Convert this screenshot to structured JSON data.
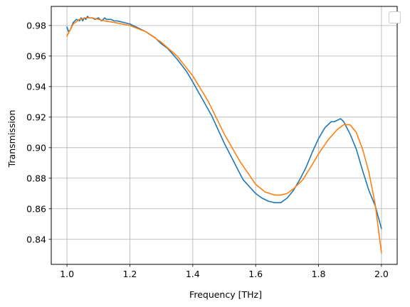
{
  "chart_data": {
    "type": "line",
    "xlabel": "Frequency [THz]",
    "ylabel": "Transmission",
    "xlim": [
      0.95,
      2.05
    ],
    "ylim": [
      0.8236,
      0.9925
    ],
    "grid": true,
    "legend": {
      "placement": "top-right",
      "entries": []
    },
    "x_ticks": [
      1.0,
      1.2,
      1.4,
      1.6,
      1.8,
      2.0
    ],
    "x_tick_labels": [
      "1.0",
      "1.2",
      "1.4",
      "1.6",
      "1.8",
      "2.0"
    ],
    "y_ticks": [
      0.84,
      0.86,
      0.88,
      0.9,
      0.92,
      0.94,
      0.96,
      0.98
    ],
    "y_tick_labels": [
      "0.84",
      "0.86",
      "0.88",
      "0.90",
      "0.92",
      "0.94",
      "0.96",
      "0.98"
    ],
    "series": [
      {
        "color": "#1f77b4",
        "x": [
          1.0,
          1.005,
          1.01,
          1.02,
          1.03,
          1.04,
          1.045,
          1.05,
          1.055,
          1.06,
          1.065,
          1.07,
          1.08,
          1.09,
          1.1,
          1.11,
          1.12,
          1.125,
          1.13,
          1.14,
          1.15,
          1.16,
          1.18,
          1.2,
          1.22,
          1.25,
          1.28,
          1.3,
          1.32,
          1.35,
          1.38,
          1.4,
          1.43,
          1.46,
          1.5,
          1.53,
          1.56,
          1.6,
          1.62,
          1.64,
          1.66,
          1.68,
          1.7,
          1.72,
          1.74,
          1.76,
          1.78,
          1.8,
          1.82,
          1.84,
          1.85,
          1.86,
          1.87,
          1.88,
          1.89,
          1.9,
          1.92,
          1.94,
          1.96,
          1.98,
          2.0
        ],
        "y": [
          0.979,
          0.976,
          0.977,
          0.982,
          0.984,
          0.983,
          0.985,
          0.983,
          0.985,
          0.984,
          0.986,
          0.985,
          0.985,
          0.984,
          0.985,
          0.983,
          0.985,
          0.984,
          0.984,
          0.984,
          0.983,
          0.983,
          0.982,
          0.981,
          0.979,
          0.976,
          0.972,
          0.968,
          0.965,
          0.958,
          0.95,
          0.943,
          0.932,
          0.921,
          0.903,
          0.891,
          0.879,
          0.87,
          0.867,
          0.865,
          0.864,
          0.864,
          0.867,
          0.872,
          0.879,
          0.887,
          0.897,
          0.906,
          0.913,
          0.917,
          0.917,
          0.918,
          0.919,
          0.917,
          0.913,
          0.909,
          0.899,
          0.885,
          0.872,
          0.862,
          0.847
        ]
      },
      {
        "color": "#ff7f0e",
        "x": [
          1.0,
          1.02,
          1.04,
          1.06,
          1.08,
          1.1,
          1.12,
          1.15,
          1.2,
          1.25,
          1.3,
          1.35,
          1.4,
          1.45,
          1.5,
          1.55,
          1.6,
          1.63,
          1.66,
          1.68,
          1.7,
          1.72,
          1.75,
          1.78,
          1.8,
          1.83,
          1.86,
          1.88,
          1.89,
          1.9,
          1.92,
          1.94,
          1.96,
          1.98,
          2.0
        ],
        "y": [
          0.973,
          0.981,
          0.984,
          0.985,
          0.985,
          0.984,
          0.983,
          0.982,
          0.98,
          0.976,
          0.969,
          0.96,
          0.947,
          0.93,
          0.909,
          0.891,
          0.876,
          0.871,
          0.869,
          0.869,
          0.87,
          0.873,
          0.879,
          0.889,
          0.896,
          0.905,
          0.912,
          0.915,
          0.915,
          0.915,
          0.91,
          0.899,
          0.884,
          0.863,
          0.831
        ]
      }
    ]
  }
}
